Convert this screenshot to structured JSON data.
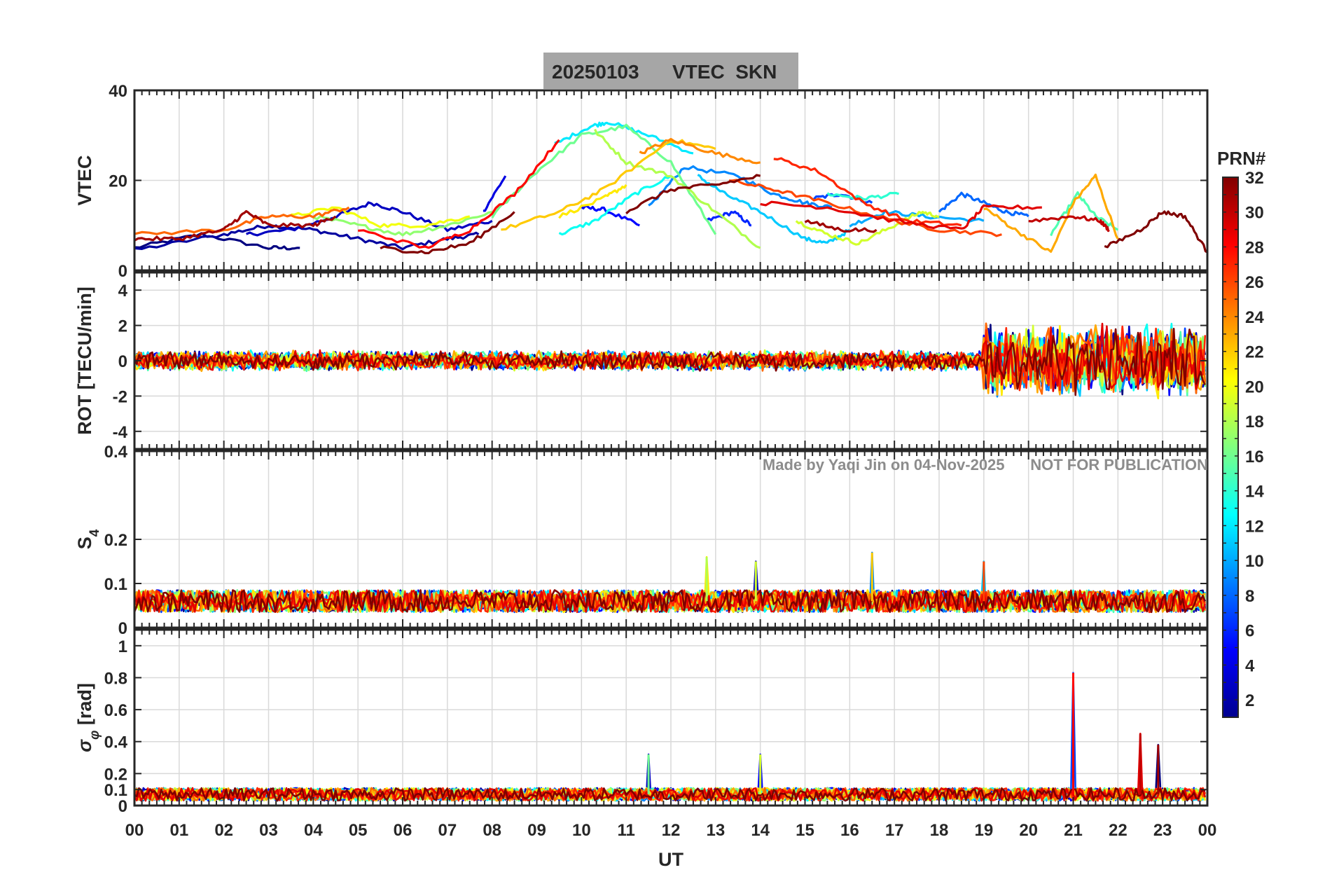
{
  "chart_data": {
    "type": "line",
    "title_date": "20250103",
    "title_text": "VTEC  SKN",
    "xlabel": "UT",
    "x_tick_labels": [
      "00",
      "01",
      "02",
      "03",
      "04",
      "05",
      "06",
      "07",
      "08",
      "09",
      "10",
      "11",
      "12",
      "13",
      "14",
      "15",
      "16",
      "17",
      "18",
      "19",
      "20",
      "21",
      "22",
      "23",
      "00"
    ],
    "xlim": [
      0,
      24
    ],
    "watermark": "Made by Yaqi Jin on 04-Nov-2025      NOT FOR PUBLICATION",
    "panels": [
      {
        "name": "vtec",
        "ylabel": "VTEC",
        "ylim": [
          0,
          40
        ],
        "ticks": [
          0,
          20,
          40
        ],
        "tick_labels": [
          "0",
          "20",
          "40"
        ]
      },
      {
        "name": "rot",
        "ylabel": "ROT [TECU/min]",
        "ylim": [
          -5,
          5
        ],
        "ticks": [
          -4,
          -2,
          0,
          2,
          4
        ],
        "tick_labels": [
          "-4",
          "-2",
          "0",
          "2",
          "4"
        ]
      },
      {
        "name": "s4",
        "ylabel": "S",
        "ylabel_sub": "4",
        "ylim": [
          0,
          0.4
        ],
        "ticks": [
          0,
          0.1,
          0.2,
          0.4
        ],
        "tick_labels": [
          "0",
          "0.1",
          "0.2",
          "0.4"
        ]
      },
      {
        "name": "sigma",
        "ylabel": "σ",
        "ylabel_sub": "φ",
        "ylabel_unit": " [rad]",
        "ylim": [
          0,
          1.1
        ],
        "ticks": [
          0,
          0.1,
          0.2,
          0.4,
          0.6,
          0.8,
          1
        ],
        "tick_labels": [
          "0",
          "0.1",
          "0.2",
          "0.4",
          "0.6",
          "0.8",
          "1"
        ]
      }
    ],
    "colorbar": {
      "label": "PRN#",
      "min": 1,
      "max": 32,
      "ticks": [
        2,
        4,
        6,
        8,
        10,
        12,
        14,
        16,
        18,
        20,
        22,
        24,
        26,
        28,
        30,
        32
      ]
    },
    "vtec_series": [
      {
        "prn": 1,
        "points": [
          [
            0,
            5
          ],
          [
            1.5,
            8
          ],
          [
            3,
            5
          ],
          [
            3.7,
            5
          ]
        ]
      },
      {
        "prn": 2,
        "points": [
          [
            0,
            4.5
          ],
          [
            2,
            8
          ],
          [
            3,
            10
          ],
          [
            4,
            9
          ],
          [
            5,
            7
          ],
          [
            6,
            5
          ],
          [
            7,
            7
          ],
          [
            7.7,
            8
          ]
        ]
      },
      {
        "prn": 3,
        "points": [
          [
            2.5,
            8
          ],
          [
            3.5,
            9
          ],
          [
            4.5,
            12
          ],
          [
            5.3,
            15
          ],
          [
            6,
            13
          ],
          [
            7,
            9
          ],
          [
            8,
            11
          ]
        ]
      },
      {
        "prn": 4,
        "points": [
          [
            7.8,
            13
          ],
          [
            8.3,
            21
          ]
        ]
      },
      {
        "prn": 5,
        "points": [
          [
            10,
            14
          ],
          [
            10.5,
            13.5
          ],
          [
            11.3,
            10
          ]
        ]
      },
      {
        "prn": 6,
        "points": [
          [
            12.8,
            11
          ],
          [
            13.4,
            13
          ],
          [
            13.8,
            10
          ]
        ]
      },
      {
        "prn": 7,
        "points": [
          [
            15.2,
            16
          ],
          [
            15.8,
            17
          ],
          [
            16.5,
            15
          ]
        ]
      },
      {
        "prn": 8,
        "points": [
          [
            18,
            13
          ],
          [
            18.5,
            17
          ],
          [
            19,
            15
          ],
          [
            19.5,
            13
          ],
          [
            20,
            12
          ]
        ]
      },
      {
        "prn": 9,
        "points": [
          [
            11.5,
            14
          ],
          [
            12.3,
            23
          ],
          [
            13.5,
            21
          ],
          [
            14.3,
            17
          ],
          [
            15,
            15
          ],
          [
            15.6,
            14
          ]
        ]
      },
      {
        "prn": 10,
        "points": [
          [
            16,
            10
          ],
          [
            16.8,
            13
          ],
          [
            17.7,
            12
          ],
          [
            19,
            11
          ]
        ]
      },
      {
        "prn": 11,
        "points": [
          [
            12.6,
            21
          ],
          [
            13.2,
            17
          ],
          [
            14,
            13
          ],
          [
            15,
            7
          ],
          [
            15.5,
            6
          ],
          [
            16,
            9
          ]
        ]
      },
      {
        "prn": 12,
        "points": [
          [
            9.4,
            28
          ],
          [
            10.2,
            32
          ],
          [
            10.6,
            33
          ],
          [
            11.5,
            30
          ],
          [
            12.5,
            26
          ]
        ]
      },
      {
        "prn": 13,
        "points": [
          [
            9.5,
            8
          ],
          [
            10.3,
            11
          ],
          [
            11.2,
            17
          ],
          [
            12,
            21
          ]
        ]
      },
      {
        "prn": 14,
        "points": [
          [
            15.5,
            17
          ],
          [
            16.3,
            16
          ],
          [
            17.1,
            17
          ]
        ]
      },
      {
        "prn": 15,
        "points": [
          [
            20.5,
            8
          ],
          [
            21.1,
            17
          ],
          [
            21.5,
            12
          ],
          [
            22,
            9
          ]
        ]
      },
      {
        "prn": 16,
        "points": [
          [
            8,
            12
          ],
          [
            9,
            22
          ],
          [
            10,
            30
          ],
          [
            11,
            32
          ],
          [
            12,
            24
          ],
          [
            13,
            8
          ]
        ]
      },
      {
        "prn": 17,
        "points": [
          [
            4,
            12
          ],
          [
            5,
            10
          ],
          [
            6,
            8
          ],
          [
            7,
            10
          ],
          [
            8,
            13
          ]
        ]
      },
      {
        "prn": 18,
        "points": [
          [
            10.3,
            31
          ],
          [
            11,
            24
          ],
          [
            12,
            21
          ],
          [
            13,
            13
          ],
          [
            14,
            5
          ]
        ]
      },
      {
        "prn": 19,
        "points": [
          [
            14.8,
            11
          ],
          [
            15.5,
            8
          ],
          [
            16.2,
            6
          ],
          [
            17,
            10
          ],
          [
            17.6,
            13
          ],
          [
            18,
            12
          ]
        ]
      },
      {
        "prn": 20,
        "points": [
          [
            3.5,
            12
          ],
          [
            4.5,
            14
          ],
          [
            5.5,
            10
          ],
          [
            6.5,
            10
          ],
          [
            7.5,
            12
          ]
        ]
      },
      {
        "prn": 21,
        "points": [
          [
            9.5,
            12
          ],
          [
            10.5,
            16
          ],
          [
            11,
            19
          ]
        ]
      },
      {
        "prn": 22,
        "points": [
          [
            8.2,
            9
          ],
          [
            9.5,
            13
          ],
          [
            10.5,
            18
          ],
          [
            12,
            29
          ],
          [
            13,
            27
          ]
        ]
      },
      {
        "prn": 23,
        "points": [
          [
            19,
            14
          ],
          [
            19.7,
            9
          ],
          [
            20.5,
            4
          ],
          [
            21,
            15
          ],
          [
            21.5,
            21
          ],
          [
            22,
            7
          ]
        ]
      },
      {
        "prn": 24,
        "points": [
          [
            11.3,
            26
          ],
          [
            12,
            29
          ],
          [
            13,
            26
          ],
          [
            14,
            24
          ]
        ]
      },
      {
        "prn": 25,
        "points": [
          [
            0,
            8
          ],
          [
            2,
            9
          ],
          [
            3,
            12
          ],
          [
            4,
            12
          ],
          [
            4.8,
            14
          ]
        ]
      },
      {
        "prn": 26,
        "points": [
          [
            13.3,
            20
          ],
          [
            14.3,
            18
          ],
          [
            15.5,
            15
          ],
          [
            17,
            11
          ],
          [
            18,
            9
          ],
          [
            19.4,
            8
          ]
        ]
      },
      {
        "prn": 27,
        "points": [
          [
            14.3,
            25
          ],
          [
            15.3,
            22
          ],
          [
            16.3,
            15
          ],
          [
            17.3,
            11
          ],
          [
            18.5,
            10
          ]
        ]
      },
      {
        "prn": 28,
        "points": [
          [
            5,
            9
          ],
          [
            6.5,
            5
          ],
          [
            7.5,
            9
          ],
          [
            8.5,
            17
          ],
          [
            9.5,
            29
          ]
        ]
      },
      {
        "prn": 29,
        "points": [
          [
            14,
            15
          ],
          [
            15.5,
            14
          ],
          [
            17,
            11
          ],
          [
            18.5,
            9
          ],
          [
            19,
            14
          ],
          [
            20.3,
            14
          ]
        ]
      },
      {
        "prn": 30,
        "points": [
          [
            20,
            11
          ],
          [
            21,
            12
          ],
          [
            21.6,
            11
          ],
          [
            21.8,
            9
          ]
        ]
      },
      {
        "prn": 31,
        "points": [
          [
            0,
            7
          ],
          [
            1,
            7
          ],
          [
            2,
            9
          ],
          [
            2.5,
            13
          ],
          [
            3,
            10
          ],
          [
            4,
            10
          ],
          [
            4.5,
            12
          ]
        ]
      },
      {
        "prn": 32,
        "points": [
          [
            11,
            13
          ],
          [
            12,
            18
          ],
          [
            13,
            19
          ],
          [
            14,
            21
          ]
        ]
      },
      {
        "prn": 32,
        "points": [
          [
            5.5,
            5
          ],
          [
            6.5,
            4
          ],
          [
            7.5,
            6
          ],
          [
            8.5,
            13
          ]
        ]
      },
      {
        "prn": 31,
        "points": [
          [
            15,
            11
          ],
          [
            15.8,
            9
          ],
          [
            16.6,
            9
          ]
        ]
      },
      {
        "prn": 32,
        "points": [
          [
            21.7,
            5
          ],
          [
            22.5,
            9
          ],
          [
            23,
            13
          ],
          [
            23.5,
            12
          ],
          [
            24,
            4
          ]
        ]
      }
    ],
    "rot_style": {
      "base_amplitude_tecu_per_min": 0.6,
      "active_interval_ut": [
        19,
        24
      ],
      "active_amplitude_tecu_per_min": 2.2
    },
    "s4_style": {
      "baseline": 0.06,
      "spread": 0.025,
      "peaks": [
        [
          12.8,
          0.16
        ],
        [
          13.9,
          0.15
        ],
        [
          16.5,
          0.17
        ],
        [
          19.0,
          0.15
        ]
      ]
    },
    "sigma_style": {
      "baseline": 0.07,
      "spread": 0.04,
      "peaks": [
        [
          21.0,
          0.83
        ],
        [
          22.5,
          0.45
        ],
        [
          22.9,
          0.38
        ],
        [
          11.5,
          0.32
        ],
        [
          14.0,
          0.32
        ]
      ]
    }
  }
}
